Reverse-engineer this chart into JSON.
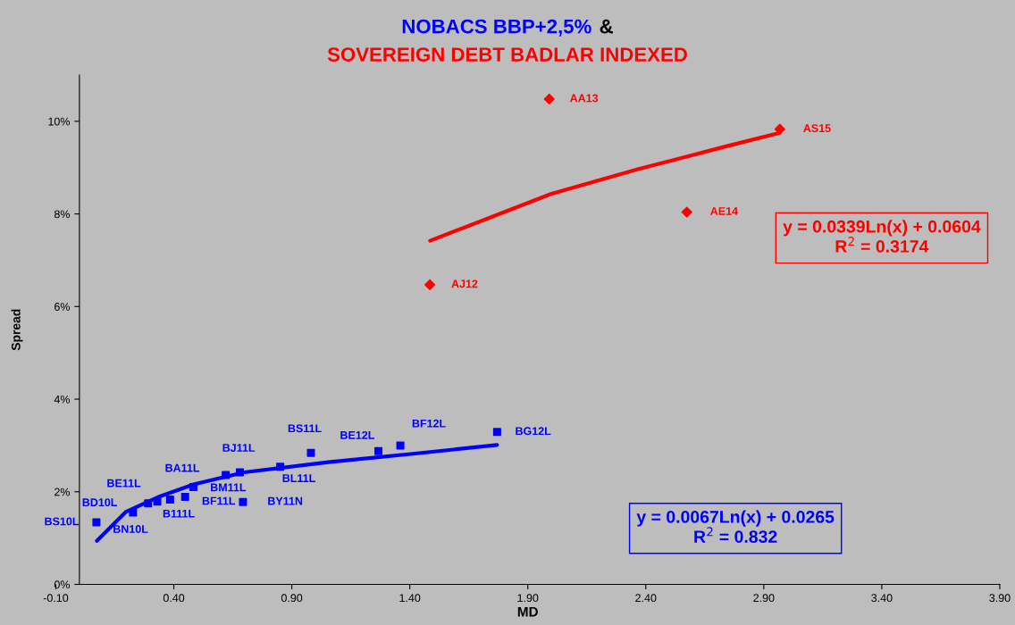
{
  "chart_data": {
    "type": "scatter",
    "title": "&",
    "xlabel": "MD",
    "ylabel": "Spread",
    "xlim": [
      -0.1,
      3.9
    ],
    "ylim": [
      0,
      0.11
    ],
    "xticks": [
      {
        "value": -0.1,
        "label": "-0.10"
      },
      {
        "value": 0.4,
        "label": "0.40"
      },
      {
        "value": 0.9,
        "label": "0.90"
      },
      {
        "value": 1.4,
        "label": "1.40"
      },
      {
        "value": 1.9,
        "label": "1.90"
      },
      {
        "value": 2.4,
        "label": "2.40"
      },
      {
        "value": 2.9,
        "label": "2.90"
      },
      {
        "value": 3.4,
        "label": "3.40"
      },
      {
        "value": 3.9,
        "label": "3.90"
      }
    ],
    "yticks": [
      {
        "value": 0,
        "label": "0%"
      },
      {
        "value": 0.02,
        "label": "2%"
      },
      {
        "value": 0.04,
        "label": "4%"
      },
      {
        "value": 0.06,
        "label": "6%"
      },
      {
        "value": 0.08,
        "label": "8%"
      },
      {
        "value": 0.1,
        "label": "10%"
      }
    ],
    "grid": false,
    "legend": false,
    "series": [
      {
        "name": "NOBACS BBP+2,5%",
        "color": "#0000ff",
        "marker": "square",
        "x": [
          0.072,
          0.227,
          0.291,
          0.33,
          0.384,
          0.448,
          0.483,
          0.62,
          0.68,
          0.693,
          0.851,
          0.981,
          1.267,
          1.36,
          1.77
        ],
        "values": [
          0.0134,
          0.0155,
          0.0175,
          0.0179,
          0.0183,
          0.0189,
          0.021,
          0.0236,
          0.0242,
          0.0178,
          0.0254,
          0.0284,
          0.0288,
          0.03,
          0.0329
        ]
      },
      {
        "name": "SOVEREIGN DEBT BADLAR INDEXED",
        "color": "#ff0000",
        "marker": "diamond",
        "x": [
          1.485,
          1.991,
          2.574,
          2.968
        ],
        "values": [
          0.0647,
          0.1048,
          0.0804,
          0.0983
        ]
      },
      {
        "type": "line",
        "color": "#0000ff",
        "x": [
          0.074,
          0.198,
          0.341,
          0.484,
          0.698,
          1.055,
          1.413,
          1.77
        ],
        "values": [
          0.0094,
          0.0157,
          0.019,
          0.0216,
          0.0242,
          0.0264,
          0.0282,
          0.0301
        ]
      },
      {
        "type": "line",
        "color": "#ff0000",
        "x": [
          1.486,
          1.998,
          2.37,
          2.741,
          2.968
        ],
        "values": [
          0.0742,
          0.0843,
          0.0897,
          0.0946,
          0.0975
        ]
      }
    ],
    "annotations": [
      {
        "text": "BS10L",
        "x": 0.072,
        "y": 0.0134
      },
      {
        "text": "BN10L",
        "x": 0.227,
        "y": 0.0155
      },
      {
        "text": "BD10L",
        "x": 0.291,
        "y": 0.0175
      },
      {
        "text": "BE11L",
        "x": 0.33,
        "y": 0.0179
      },
      {
        "text": "B111L",
        "x": 0.384,
        "y": 0.0183
      },
      {
        "text": "BF11L",
        "x": 0.448,
        "y": 0.0189
      },
      {
        "text": "BM11L",
        "x": 0.483,
        "y": 0.021
      },
      {
        "text": "BA11L",
        "x": 0.62,
        "y": 0.0236
      },
      {
        "text": "BJ11L",
        "x": 0.68,
        "y": 0.0242
      },
      {
        "text": "BY11N",
        "x": 0.693,
        "y": 0.0178
      },
      {
        "text": "BL11L",
        "x": 0.851,
        "y": 0.0254
      },
      {
        "text": "BS11L",
        "x": 0.981,
        "y": 0.0284
      },
      {
        "text": "BE12L",
        "x": 1.267,
        "y": 0.0288
      },
      {
        "text": "BF12L",
        "x": 1.36,
        "y": 0.03
      },
      {
        "text": "BG12L",
        "x": 1.77,
        "y": 0.0329
      },
      {
        "text": "AJ12",
        "x": 1.485,
        "y": 0.0647
      },
      {
        "text": "AA13",
        "x": 1.991,
        "y": 0.1048
      },
      {
        "text": "AE14",
        "x": 2.574,
        "y": 0.0804
      },
      {
        "text": "AS15",
        "x": 2.968,
        "y": 0.0983
      },
      "y = 0.0067Ln(x) + 0.0265\nR$^{2}$ = 0.832",
      "y = 0.0339Ln(x) + 0.0604\nR$^{2}$ = 0.3174"
    ]
  }
}
